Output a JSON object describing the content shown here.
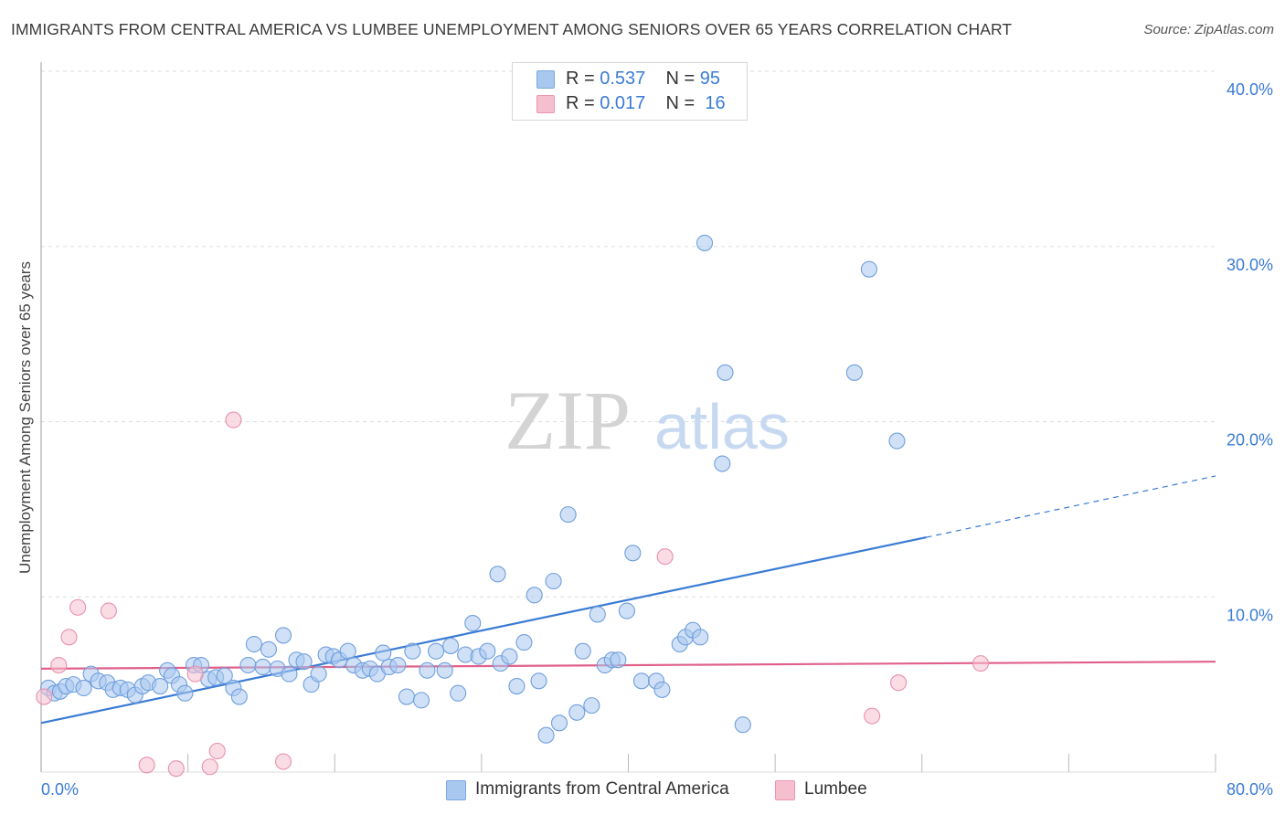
{
  "title": "IMMIGRANTS FROM CENTRAL AMERICA VS LUMBEE UNEMPLOYMENT AMONG SENIORS OVER 65 YEARS CORRELATION CHART",
  "source": "Source: ZipAtlas.com",
  "watermark": {
    "zip": "ZIP",
    "atlas": "atlas"
  },
  "legend_top": [
    {
      "r_label": "R =",
      "r_value": "0.537",
      "n_label": "N =",
      "n_value": "95",
      "color": "#a9c8f0"
    },
    {
      "r_label": "R =",
      "r_value": "0.017",
      "n_label": "N =",
      "n_value": "16",
      "color": "#f6bfd0"
    }
  ],
  "legend_bottom": [
    {
      "label": "Immigrants from Central America",
      "color": "#a9c8f0"
    },
    {
      "label": "Lumbee",
      "color": "#f6bfd0"
    }
  ],
  "colors": {
    "blue": "#3a7bd5",
    "blue_fill": "#a9c8f0",
    "pink": "#e0608a",
    "pink_fill": "#f6bfd0",
    "grid": "#dddddd",
    "tick_text": "#3a7bd5"
  },
  "chart_data": {
    "type": "scatter",
    "title": "IMMIGRANTS FROM CENTRAL AMERICA VS LUMBEE UNEMPLOYMENT AMONG SENIORS OVER 65 YEARS CORRELATION CHART",
    "xlabel": "",
    "ylabel": "Unemployment Among Seniors over 65 years",
    "xlim": [
      0,
      80
    ],
    "ylim": [
      0,
      40
    ],
    "x_tick_labels": [
      "0.0%",
      "80.0%"
    ],
    "y_tick_labels": [
      "10.0%",
      "20.0%",
      "30.0%",
      "40.0%"
    ],
    "y_ticks": [
      10,
      20,
      30,
      40
    ],
    "grid": true,
    "legend_position": "top-center",
    "series": [
      {
        "name": "Immigrants from Central America",
        "r": 0.537,
        "n": 95,
        "trend": {
          "x": [
            0,
            60.3
          ],
          "y": [
            2.8,
            13.4
          ],
          "dashed_to": {
            "x": 80,
            "y": 16.9
          }
        },
        "points": [
          [
            0.5,
            4.8
          ],
          [
            0.9,
            4.5
          ],
          [
            1.3,
            4.6
          ],
          [
            1.7,
            4.9
          ],
          [
            2.2,
            5.0
          ],
          [
            2.9,
            4.8
          ],
          [
            3.4,
            5.6
          ],
          [
            3.9,
            5.2
          ],
          [
            4.5,
            5.1
          ],
          [
            4.9,
            4.7
          ],
          [
            5.4,
            4.8
          ],
          [
            5.9,
            4.7
          ],
          [
            6.4,
            4.4
          ],
          [
            6.9,
            4.9
          ],
          [
            7.3,
            5.1
          ],
          [
            8.1,
            4.9
          ],
          [
            8.6,
            5.8
          ],
          [
            8.9,
            5.5
          ],
          [
            9.4,
            5.0
          ],
          [
            9.8,
            4.5
          ],
          [
            10.4,
            6.1
          ],
          [
            10.9,
            6.1
          ],
          [
            11.4,
            5.3
          ],
          [
            11.9,
            5.4
          ],
          [
            12.5,
            5.5
          ],
          [
            13.1,
            4.8
          ],
          [
            13.5,
            4.3
          ],
          [
            14.1,
            6.1
          ],
          [
            14.5,
            7.3
          ],
          [
            15.1,
            6.0
          ],
          [
            15.5,
            7.0
          ],
          [
            16.1,
            5.9
          ],
          [
            16.5,
            7.8
          ],
          [
            16.9,
            5.6
          ],
          [
            17.4,
            6.4
          ],
          [
            17.9,
            6.3
          ],
          [
            18.4,
            5.0
          ],
          [
            18.9,
            5.6
          ],
          [
            19.4,
            6.7
          ],
          [
            19.9,
            6.6
          ],
          [
            20.3,
            6.4
          ],
          [
            20.9,
            6.9
          ],
          [
            21.3,
            6.1
          ],
          [
            21.9,
            5.8
          ],
          [
            22.4,
            5.9
          ],
          [
            22.9,
            5.6
          ],
          [
            23.3,
            6.8
          ],
          [
            23.7,
            6.0
          ],
          [
            24.3,
            6.1
          ],
          [
            24.9,
            4.3
          ],
          [
            25.3,
            6.9
          ],
          [
            25.9,
            4.1
          ],
          [
            26.3,
            5.8
          ],
          [
            26.9,
            6.9
          ],
          [
            27.5,
            5.8
          ],
          [
            27.9,
            7.2
          ],
          [
            28.4,
            4.5
          ],
          [
            28.9,
            6.7
          ],
          [
            29.4,
            8.5
          ],
          [
            29.8,
            6.6
          ],
          [
            30.4,
            6.9
          ],
          [
            31.1,
            11.3
          ],
          [
            31.3,
            6.2
          ],
          [
            31.9,
            6.6
          ],
          [
            32.4,
            4.9
          ],
          [
            32.9,
            7.4
          ],
          [
            33.6,
            10.1
          ],
          [
            33.9,
            5.2
          ],
          [
            34.4,
            2.1
          ],
          [
            34.9,
            10.9
          ],
          [
            35.3,
            2.8
          ],
          [
            35.9,
            14.7
          ],
          [
            36.5,
            3.4
          ],
          [
            36.9,
            6.9
          ],
          [
            37.5,
            3.8
          ],
          [
            37.9,
            9.0
          ],
          [
            38.4,
            6.1
          ],
          [
            38.9,
            6.4
          ],
          [
            39.3,
            6.4
          ],
          [
            39.9,
            9.2
          ],
          [
            40.3,
            12.5
          ],
          [
            40.9,
            5.2
          ],
          [
            41.9,
            5.2
          ],
          [
            42.3,
            4.7
          ],
          [
            43.5,
            7.3
          ],
          [
            43.9,
            7.7
          ],
          [
            44.4,
            8.1
          ],
          [
            44.9,
            7.7
          ],
          [
            45.2,
            30.2
          ],
          [
            46.4,
            17.6
          ],
          [
            46.6,
            22.8
          ],
          [
            47.8,
            2.7
          ],
          [
            55.4,
            22.8
          ],
          [
            56.4,
            28.7
          ],
          [
            58.3,
            18.9
          ]
        ]
      },
      {
        "name": "Lumbee",
        "r": 0.017,
        "n": 16,
        "trend": {
          "x": [
            0,
            80
          ],
          "y": [
            5.9,
            6.3
          ]
        },
        "points": [
          [
            0.2,
            4.3
          ],
          [
            1.2,
            6.1
          ],
          [
            1.9,
            7.7
          ],
          [
            2.5,
            9.4
          ],
          [
            4.6,
            9.2
          ],
          [
            7.2,
            0.4
          ],
          [
            9.2,
            0.2
          ],
          [
            10.5,
            5.6
          ],
          [
            11.5,
            0.3
          ],
          [
            12.0,
            1.2
          ],
          [
            13.1,
            20.1
          ],
          [
            16.5,
            0.6
          ],
          [
            42.5,
            12.3
          ],
          [
            56.6,
            3.2
          ],
          [
            58.4,
            5.1
          ],
          [
            64.0,
            6.2
          ]
        ]
      }
    ]
  }
}
